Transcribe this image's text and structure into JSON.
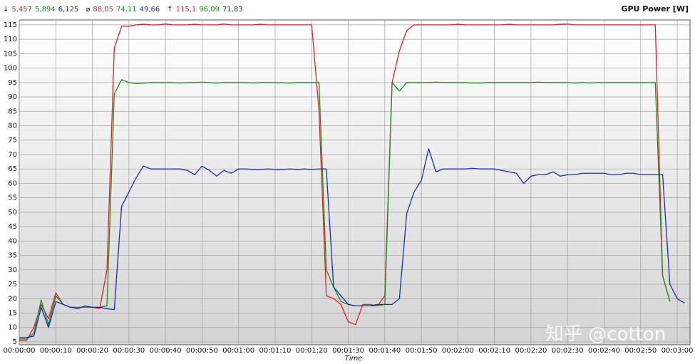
{
  "chart_data": {
    "type": "line",
    "title": "GPU Power [W]",
    "x_label": "Time",
    "watermark": "知乎 @cotton",
    "stats": [
      {
        "symbol": "↓",
        "values": [
          5.457,
          5.894,
          6.125
        ],
        "value_labels": [
          "5,457",
          "5,894",
          "6,125"
        ]
      },
      {
        "symbol": "⌀",
        "values": [
          88.05,
          74.11,
          49.66
        ],
        "value_labels": [
          "88,05",
          "74,11",
          "49,66"
        ]
      },
      {
        "symbol": "↑",
        "values": [
          115.1,
          96.09,
          71.83
        ],
        "value_labels": [
          "115,1",
          "96,09",
          "71,83"
        ]
      }
    ],
    "x": [
      0,
      2,
      4,
      6,
      8,
      10,
      12,
      14,
      16,
      18,
      20,
      22,
      24,
      26,
      28,
      30,
      32,
      34,
      36,
      38,
      40,
      42,
      44,
      46,
      48,
      50,
      52,
      54,
      56,
      58,
      60,
      62,
      64,
      66,
      68,
      70,
      72,
      74,
      76,
      78,
      80,
      82,
      84,
      86,
      88,
      90,
      92,
      94,
      96,
      98,
      100,
      102,
      104,
      106,
      108,
      110,
      112,
      114,
      116,
      118,
      120,
      122,
      124,
      126,
      128,
      130,
      132,
      134,
      136,
      138,
      140,
      142,
      144,
      146,
      148,
      150,
      152,
      154,
      156,
      158,
      160,
      162,
      164,
      166,
      168,
      170,
      172,
      174,
      176,
      178,
      180,
      182
    ],
    "series": [
      {
        "color": "#e0202a",
        "values": [
          5.5,
          5.5,
          10,
          18,
          13,
          22,
          18,
          17,
          17,
          17,
          17,
          16.5,
          30,
          107,
          114.5,
          114.5,
          115,
          115.2,
          115,
          115,
          115.3,
          115,
          115,
          115,
          115.2,
          115,
          115,
          115,
          115.3,
          115,
          115,
          115,
          115,
          115.2,
          115,
          115,
          115,
          115,
          115,
          115,
          115,
          85,
          21,
          20,
          18,
          12,
          11,
          18,
          18,
          17.5,
          21,
          95,
          106,
          113,
          115,
          115,
          115,
          115,
          115,
          115,
          115.2,
          115,
          115,
          115,
          115,
          115,
          115,
          115.2,
          115,
          115,
          115,
          115,
          115,
          115,
          115.2,
          115.3,
          115,
          115,
          115,
          115,
          115,
          115,
          115,
          115,
          115,
          115,
          115,
          115,
          28,
          19,
          null,
          null
        ]
      },
      {
        "color": "#1e8a1e",
        "values": [
          6,
          6,
          8,
          19.5,
          11,
          21,
          18,
          17,
          17,
          17,
          17,
          17,
          17.5,
          91,
          96,
          95,
          94.6,
          94.8,
          95,
          95,
          95,
          95,
          94.8,
          95,
          95,
          95.1,
          95,
          94.8,
          95,
          95,
          95,
          95,
          94.8,
          95,
          95,
          95,
          94.9,
          94.8,
          95,
          95,
          95,
          95,
          30,
          24,
          19,
          18,
          17.5,
          17.5,
          17.5,
          17.5,
          18,
          95,
          92,
          95,
          95,
          95,
          95,
          95.1,
          95,
          95,
          95,
          95,
          94.8,
          94.8,
          95,
          95,
          95,
          95,
          95,
          95,
          95,
          95.1,
          95,
          95,
          95,
          95,
          94.8,
          95,
          94.8,
          95,
          95,
          95,
          95,
          95,
          95,
          95,
          95,
          95,
          28,
          19,
          null,
          null
        ]
      },
      {
        "color": "#1a2db0",
        "values": [
          6.5,
          6.5,
          7,
          17,
          10,
          19,
          18,
          17,
          16.5,
          17.5,
          17,
          17,
          16.5,
          16.2,
          52,
          57,
          62,
          66,
          65,
          65,
          65,
          65,
          65,
          64.5,
          63,
          66,
          64.5,
          62.5,
          64.5,
          63.5,
          65,
          65,
          64.8,
          64.8,
          65,
          64.8,
          64.8,
          65,
          64.8,
          65,
          64.8,
          65,
          65,
          24,
          21,
          18,
          17.5,
          17.5,
          17.5,
          18,
          18,
          18,
          20,
          49.5,
          57,
          61,
          72,
          64,
          65,
          65,
          65,
          65,
          65.2,
          65,
          65,
          65,
          64.5,
          64,
          63.5,
          60,
          62.5,
          63,
          63,
          64,
          62.5,
          63,
          63,
          63.5,
          63.5,
          63.5,
          63.5,
          63,
          63,
          63.5,
          63.5,
          63,
          63,
          63,
          63,
          25,
          20,
          18.5
        ]
      }
    ],
    "xlim": [
      0,
      183.5
    ],
    "xticks": [
      {
        "value": 0,
        "label": "00:00:00"
      },
      {
        "value": 10,
        "label": "00:00:10"
      },
      {
        "value": 20,
        "label": "00:00:20"
      },
      {
        "value": 30,
        "label": "00:00:30"
      },
      {
        "value": 40,
        "label": "00:00:40"
      },
      {
        "value": 50,
        "label": "00:00:50"
      },
      {
        "value": 60,
        "label": "00:01:00"
      },
      {
        "value": 70,
        "label": "00:01:10"
      },
      {
        "value": 80,
        "label": "00:01:20"
      },
      {
        "value": 90,
        "label": "00:01:30"
      },
      {
        "value": 100,
        "label": "00:01:40"
      },
      {
        "value": 110,
        "label": "00:01:50"
      },
      {
        "value": 120,
        "label": "00:02:00"
      },
      {
        "value": 130,
        "label": "00:02:10"
      },
      {
        "value": 140,
        "label": "00:02:20"
      },
      {
        "value": 150,
        "label": "00:02:30"
      },
      {
        "value": 160,
        "label": "00:02:40"
      },
      {
        "value": 170,
        "label": "00:02:50"
      },
      {
        "value": 180,
        "label": "00:03:00"
      }
    ],
    "ylim": [
      4,
      116.7
    ],
    "yticks": [
      5,
      10,
      15,
      20,
      25,
      30,
      35,
      40,
      45,
      50,
      55,
      60,
      65,
      70,
      75,
      80,
      85,
      90,
      95,
      100,
      105,
      110,
      115
    ],
    "grid": true
  }
}
